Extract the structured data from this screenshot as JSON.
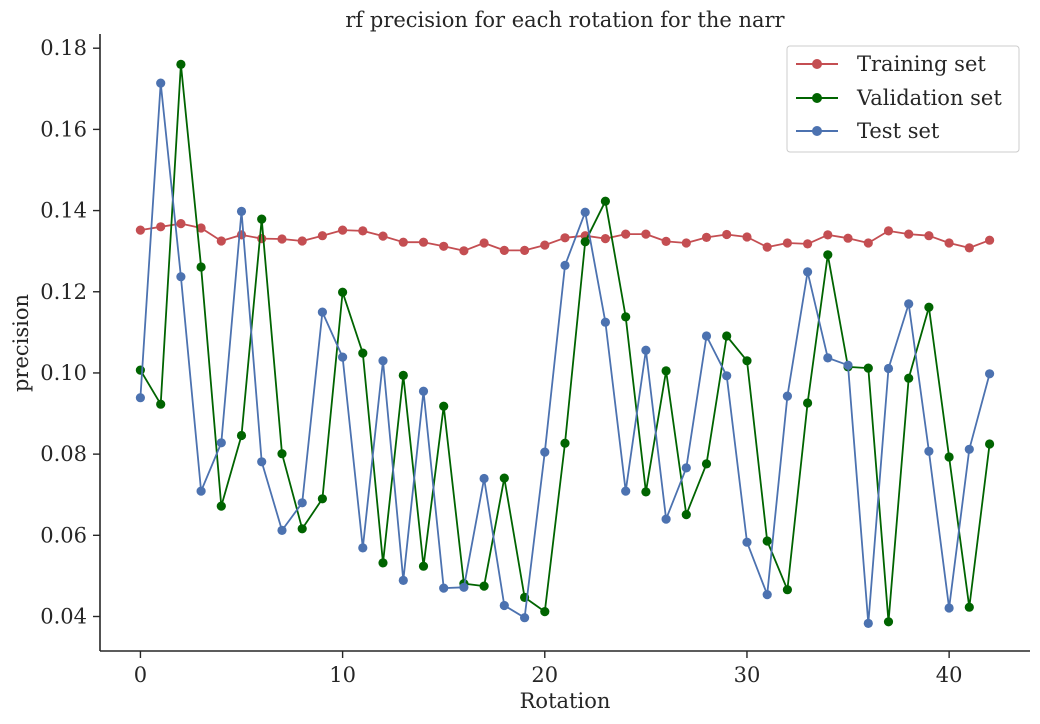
{
  "chart_data": {
    "type": "line",
    "title": "rf precision for each rotation for the narr",
    "xlabel": "Rotation",
    "ylabel": "precision",
    "xlim": [
      -2,
      44
    ],
    "ylim": [
      0.0315,
      0.1835
    ],
    "xticks": [
      0,
      10,
      20,
      30,
      40
    ],
    "yticks": [
      0.04,
      0.06,
      0.08,
      0.1,
      0.12,
      0.14,
      0.16,
      0.18
    ],
    "grid": false,
    "legend_position": "top-right",
    "x": [
      0,
      1,
      2,
      3,
      4,
      5,
      6,
      7,
      8,
      9,
      10,
      11,
      12,
      13,
      14,
      15,
      16,
      17,
      18,
      19,
      20,
      21,
      22,
      23,
      24,
      25,
      26,
      27,
      28,
      29,
      30,
      31,
      32,
      33,
      34,
      35,
      36,
      37,
      38,
      39,
      40,
      41,
      42
    ],
    "series": [
      {
        "name": "Training set",
        "color": "#c44e52",
        "values": [
          0.1352,
          0.136,
          0.1368,
          0.1357,
          0.1325,
          0.134,
          0.1331,
          0.133,
          0.1325,
          0.1338,
          0.1352,
          0.135,
          0.1337,
          0.1322,
          0.1322,
          0.1312,
          0.1301,
          0.132,
          0.1302,
          0.1302,
          0.1315,
          0.1333,
          0.1338,
          0.1331,
          0.1342,
          0.1342,
          0.1324,
          0.132,
          0.1334,
          0.1341,
          0.1335,
          0.131,
          0.132,
          0.1318,
          0.134,
          0.1332,
          0.132,
          0.135,
          0.1342,
          0.1338,
          0.132,
          0.1308,
          0.1327
        ]
      },
      {
        "name": "Validation set",
        "color": "#006400",
        "values": [
          0.1007,
          0.0923,
          0.176,
          0.1261,
          0.0672,
          0.0846,
          0.1379,
          0.0801,
          0.0616,
          0.069,
          0.1199,
          0.1049,
          0.0532,
          0.0994,
          0.0524,
          0.0918,
          0.0481,
          0.0475,
          0.0741,
          0.0447,
          0.0412,
          0.0827,
          0.1323,
          0.1423,
          0.1138,
          0.0707,
          0.1005,
          0.0651,
          0.0776,
          0.1091,
          0.103,
          0.0586,
          0.0466,
          0.0926,
          0.1291,
          0.1015,
          0.1012,
          0.0387,
          0.0987,
          0.1162,
          0.0793,
          0.0423,
          0.0825
        ]
      },
      {
        "name": "Test set",
        "color": "#4c72b0",
        "values": [
          0.0939,
          0.1714,
          0.1237,
          0.0709,
          0.0828,
          0.1398,
          0.0781,
          0.0612,
          0.068,
          0.115,
          0.1039,
          0.0569,
          0.103,
          0.0489,
          0.0955,
          0.047,
          0.0472,
          0.074,
          0.0427,
          0.0397,
          0.0805,
          0.1265,
          0.1396,
          0.1125,
          0.0709,
          0.1056,
          0.064,
          0.0766,
          0.1091,
          0.0993,
          0.0583,
          0.0454,
          0.0943,
          0.1249,
          0.1037,
          0.1019,
          0.0383,
          0.1011,
          0.117,
          0.0807,
          0.0421,
          0.0812,
          0.0998
        ]
      }
    ]
  }
}
